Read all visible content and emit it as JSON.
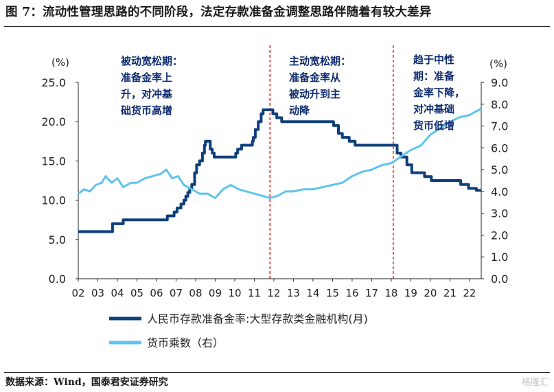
{
  "header": {
    "title": "图 7：流动性管理思路的不同阶段，法定存款准备金调整思路伴随着有较大差异"
  },
  "footer": {
    "source": "数据来源：Wind，国泰君安证券研究",
    "watermark": "格隆汇"
  },
  "chart_data": {
    "type": "line",
    "xlabel": "",
    "ylabel_left": "(%)",
    "ylabel_right": "(%)",
    "x_ticks": [
      "02",
      "03",
      "04",
      "05",
      "06",
      "07",
      "08",
      "09",
      "10",
      "11",
      "12",
      "13",
      "14",
      "15",
      "16",
      "17",
      "18",
      "19",
      "20",
      "21",
      "22"
    ],
    "xlim": [
      2002.0,
      2022.6
    ],
    "y_left": {
      "min": 0,
      "max": 25,
      "ticks": [
        "0.0",
        "5.0",
        "10.0",
        "15.0",
        "20.0",
        "25.0"
      ]
    },
    "y_right": {
      "min": 0,
      "max": 9,
      "ticks": [
        "0.0",
        "1.0",
        "2.0",
        "3.0",
        "4.0",
        "5.0",
        "6.0",
        "7.0",
        "8.0",
        "9.0"
      ]
    },
    "grid": false,
    "legend_position": "bottom",
    "series": [
      {
        "name": "人民币存款准备金率:大型存款类金融机构(月)",
        "axis": "left",
        "color": "#0e3f7c",
        "step": true,
        "points": [
          [
            2002.0,
            6.0
          ],
          [
            2003.75,
            7.0
          ],
          [
            2004.3,
            7.5
          ],
          [
            2006.55,
            8.0
          ],
          [
            2006.9,
            8.5
          ],
          [
            2007.05,
            9.0
          ],
          [
            2007.25,
            9.5
          ],
          [
            2007.4,
            10.0
          ],
          [
            2007.5,
            10.5
          ],
          [
            2007.6,
            11.0
          ],
          [
            2007.7,
            11.5
          ],
          [
            2007.8,
            12.0
          ],
          [
            2007.95,
            13.5
          ],
          [
            2008.05,
            14.5
          ],
          [
            2008.2,
            15.0
          ],
          [
            2008.35,
            16.0
          ],
          [
            2008.45,
            17.0
          ],
          [
            2008.5,
            17.5
          ],
          [
            2008.75,
            16.5
          ],
          [
            2008.85,
            16.0
          ],
          [
            2008.95,
            15.5
          ],
          [
            2010.05,
            16.0
          ],
          [
            2010.15,
            16.5
          ],
          [
            2010.35,
            17.0
          ],
          [
            2010.9,
            17.5
          ],
          [
            2010.95,
            18.0
          ],
          [
            2011.05,
            19.0
          ],
          [
            2011.2,
            20.0
          ],
          [
            2011.35,
            21.0
          ],
          [
            2011.45,
            21.5
          ],
          [
            2011.95,
            21.0
          ],
          [
            2012.15,
            20.5
          ],
          [
            2012.4,
            20.0
          ],
          [
            2015.05,
            19.5
          ],
          [
            2015.3,
            18.5
          ],
          [
            2015.5,
            18.0
          ],
          [
            2015.85,
            17.5
          ],
          [
            2016.15,
            17.0
          ],
          [
            2018.3,
            16.0
          ],
          [
            2018.5,
            15.5
          ],
          [
            2018.8,
            14.5
          ],
          [
            2019.05,
            13.5
          ],
          [
            2019.7,
            13.0
          ],
          [
            2020.05,
            12.5
          ],
          [
            2021.55,
            12.0
          ],
          [
            2021.95,
            11.5
          ],
          [
            2022.35,
            11.25
          ],
          [
            2022.6,
            11.25
          ]
        ]
      },
      {
        "name": "货币乘数（右）",
        "axis": "right",
        "color": "#5ec4ec",
        "step": false,
        "points": [
          [
            2002.0,
            3.9
          ],
          [
            2002.3,
            4.1
          ],
          [
            2002.6,
            4.0
          ],
          [
            2002.9,
            4.3
          ],
          [
            2003.2,
            4.4
          ],
          [
            2003.4,
            4.7
          ],
          [
            2003.7,
            4.4
          ],
          [
            2004.0,
            4.6
          ],
          [
            2004.3,
            4.2
          ],
          [
            2004.7,
            4.4
          ],
          [
            2005.0,
            4.4
          ],
          [
            2005.4,
            4.6
          ],
          [
            2005.8,
            4.7
          ],
          [
            2006.2,
            4.8
          ],
          [
            2006.5,
            5.0
          ],
          [
            2006.8,
            4.6
          ],
          [
            2007.1,
            4.7
          ],
          [
            2007.4,
            4.3
          ],
          [
            2007.8,
            4.1
          ],
          [
            2008.2,
            3.9
          ],
          [
            2008.6,
            3.9
          ],
          [
            2009.0,
            3.7
          ],
          [
            2009.4,
            4.1
          ],
          [
            2009.8,
            4.3
          ],
          [
            2010.2,
            4.1
          ],
          [
            2010.6,
            4.0
          ],
          [
            2011.0,
            3.9
          ],
          [
            2011.4,
            3.8
          ],
          [
            2011.8,
            3.7
          ],
          [
            2012.2,
            3.8
          ],
          [
            2012.6,
            4.0
          ],
          [
            2013.0,
            4.0
          ],
          [
            2013.5,
            4.1
          ],
          [
            2014.0,
            4.1
          ],
          [
            2014.5,
            4.2
          ],
          [
            2015.0,
            4.3
          ],
          [
            2015.5,
            4.4
          ],
          [
            2016.0,
            4.7
          ],
          [
            2016.5,
            4.9
          ],
          [
            2017.0,
            5.0
          ],
          [
            2017.5,
            5.2
          ],
          [
            2018.0,
            5.3
          ],
          [
            2018.5,
            5.6
          ],
          [
            2019.0,
            5.9
          ],
          [
            2019.5,
            6.1
          ],
          [
            2020.0,
            6.6
          ],
          [
            2020.5,
            6.9
          ],
          [
            2021.0,
            7.2
          ],
          [
            2021.5,
            7.4
          ],
          [
            2022.0,
            7.5
          ],
          [
            2022.4,
            7.7
          ],
          [
            2022.6,
            7.8
          ]
        ]
      }
    ],
    "vlines": [
      2011.8,
      2018.1
    ],
    "annotations": [
      {
        "lines": [
          "被动宽松期：",
          "准备金率上",
          "升，对冲基",
          "础货币高增"
        ]
      },
      {
        "lines": [
          "主动宽松期：",
          "准备金率从",
          "被动升到主",
          "动降"
        ]
      },
      {
        "lines": [
          "趋于中性",
          "期：准备",
          "金率下降，",
          "对冲基础",
          "货币低增"
        ]
      }
    ]
  }
}
